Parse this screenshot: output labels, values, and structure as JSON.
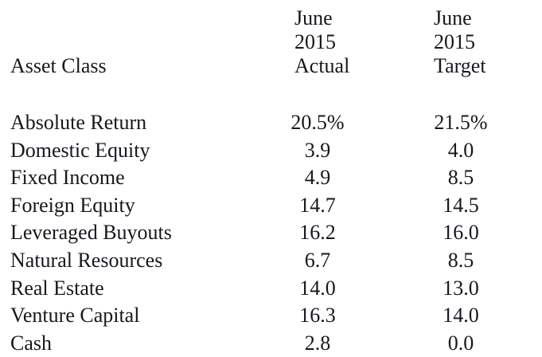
{
  "page": {
    "background_color": "#ffffff",
    "text_color": "#1a161e"
  },
  "table": {
    "header": {
      "asset_class": "Asset Class",
      "actual_line1": "June 2015",
      "actual_line2": "Actual",
      "target_line1": "June 2015",
      "target_line2": "Target"
    },
    "rows": [
      {
        "label": "Absolute Return",
        "actual": "20.5%",
        "target": "21.5%"
      },
      {
        "label": "Domestic Equity",
        "actual": "3.9",
        "target": "4.0"
      },
      {
        "label": "Fixed Income",
        "actual": "4.9",
        "target": "8.5"
      },
      {
        "label": "Foreign Equity",
        "actual": "14.7",
        "target": "14.5"
      },
      {
        "label": "Leveraged Buyouts",
        "actual": "16.2",
        "target": "16.0"
      },
      {
        "label": "Natural Resources",
        "actual": "6.7",
        "target": "8.5"
      },
      {
        "label": "Real Estate",
        "actual": "14.0",
        "target": "13.0"
      },
      {
        "label": "Venture Capital",
        "actual": "16.3",
        "target": "14.0"
      },
      {
        "label": "Cash",
        "actual": "2.8",
        "target": "0.0"
      }
    ]
  }
}
